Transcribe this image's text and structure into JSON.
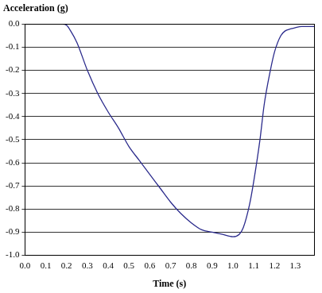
{
  "chart_data": {
    "type": "line",
    "y_label": "Acceleration (g)",
    "x_label": "Time (s)",
    "x": [
      0,
      0.1,
      0.18,
      0.2,
      0.22,
      0.25,
      0.3,
      0.35,
      0.4,
      0.45,
      0.5,
      0.55,
      0.6,
      0.65,
      0.7,
      0.75,
      0.8,
      0.85,
      0.9,
      0.95,
      1.0,
      1.03,
      1.05,
      1.08,
      1.1,
      1.13,
      1.15,
      1.18,
      1.2,
      1.23,
      1.25,
      1.28,
      1.3,
      1.33,
      1.36,
      1.39
    ],
    "values": [
      0,
      0,
      0,
      -0.005,
      -0.03,
      -0.08,
      -0.2,
      -0.3,
      -0.38,
      -0.45,
      -0.53,
      -0.59,
      -0.65,
      -0.71,
      -0.77,
      -0.82,
      -0.86,
      -0.89,
      -0.9,
      -0.91,
      -0.92,
      -0.91,
      -0.88,
      -0.78,
      -0.68,
      -0.5,
      -0.35,
      -0.2,
      -0.12,
      -0.05,
      -0.03,
      -0.02,
      -0.015,
      -0.01,
      -0.01,
      -0.01
    ],
    "color": "#2b2b8c",
    "xlim": [
      0,
      1.39
    ],
    "xticks": [
      {
        "value": 0,
        "label": "0.0"
      },
      0.1,
      0.2,
      0.3,
      0.4,
      0.5,
      0.6,
      0.7,
      0.8,
      0.9,
      {
        "value": 1,
        "label": "1.0"
      },
      1.1,
      1.2,
      1.3
    ],
    "ylim": [
      -1,
      0
    ],
    "yticks": [
      {
        "value": 0,
        "label": "0.0"
      },
      -0.1,
      -0.2,
      -0.3,
      -0.4,
      -0.5,
      -0.6,
      -0.7,
      -0.8,
      -0.9,
      {
        "value": -1,
        "label": "-1.0"
      }
    ],
    "grid": true
  }
}
